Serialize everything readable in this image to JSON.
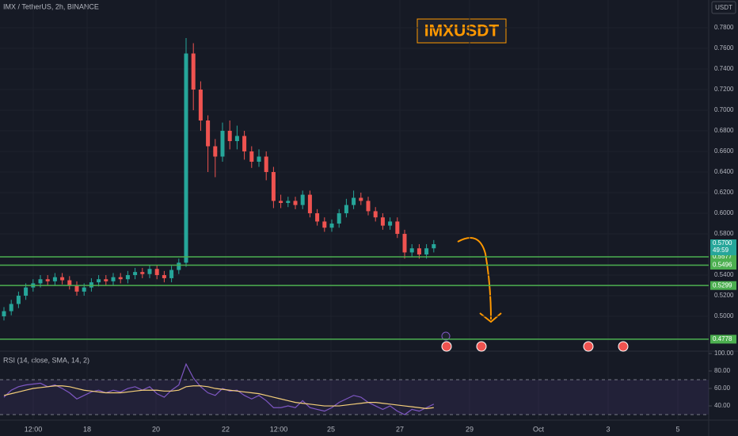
{
  "chart_data": {
    "type": "candlestick",
    "title": "IMX / TetherUS, 2h, BINANCE",
    "badge": "IMXUSDT",
    "currency": "USDT",
    "up_color": "#26a69a",
    "down_color": "#ef5350",
    "grid": true,
    "x_labels": [
      "12:00",
      "18",
      "20",
      "22",
      "12:00",
      "25",
      "27",
      "29",
      "Oct",
      "3",
      "5"
    ],
    "open": [
      0.5,
      0.505,
      0.512,
      0.52,
      0.528,
      0.532,
      0.536,
      0.534,
      0.538,
      0.535,
      0.53,
      0.524,
      0.528,
      0.533,
      0.536,
      0.534,
      0.538,
      0.536,
      0.54,
      0.543,
      0.541,
      0.546,
      0.54,
      0.537,
      0.545,
      0.552,
      0.755,
      0.72,
      0.69,
      0.665,
      0.655,
      0.68,
      0.67,
      0.675,
      0.66,
      0.65,
      0.655,
      0.64,
      0.612,
      0.61,
      0.612,
      0.608,
      0.618,
      0.6,
      0.592,
      0.586,
      0.59,
      0.6,
      0.608,
      0.615,
      0.612,
      0.602,
      0.596,
      0.588,
      0.592,
      0.58,
      0.562,
      0.566,
      0.56,
      0.566
    ],
    "high": [
      0.509,
      0.516,
      0.524,
      0.532,
      0.536,
      0.54,
      0.54,
      0.542,
      0.542,
      0.539,
      0.534,
      0.532,
      0.537,
      0.54,
      0.54,
      0.542,
      0.542,
      0.544,
      0.547,
      0.547,
      0.55,
      0.55,
      0.544,
      0.549,
      0.556,
      0.77,
      0.765,
      0.728,
      0.695,
      0.672,
      0.688,
      0.69,
      0.685,
      0.68,
      0.665,
      0.662,
      0.66,
      0.645,
      0.618,
      0.616,
      0.616,
      0.622,
      0.622,
      0.604,
      0.596,
      0.594,
      0.604,
      0.614,
      0.622,
      0.62,
      0.616,
      0.606,
      0.6,
      0.596,
      0.596,
      0.584,
      0.57,
      0.57,
      0.57,
      0.574
    ],
    "low": [
      0.496,
      0.501,
      0.508,
      0.516,
      0.524,
      0.528,
      0.53,
      0.53,
      0.531,
      0.526,
      0.52,
      0.52,
      0.524,
      0.529,
      0.53,
      0.53,
      0.532,
      0.532,
      0.536,
      0.537,
      0.537,
      0.536,
      0.533,
      0.533,
      0.541,
      0.548,
      0.7,
      0.68,
      0.64,
      0.635,
      0.65,
      0.662,
      0.662,
      0.652,
      0.644,
      0.645,
      0.632,
      0.605,
      0.605,
      0.606,
      0.604,
      0.604,
      0.596,
      0.588,
      0.582,
      0.582,
      0.586,
      0.596,
      0.604,
      0.608,
      0.598,
      0.592,
      0.584,
      0.584,
      0.576,
      0.556,
      0.558,
      0.556,
      0.556,
      0.562
    ],
    "close": [
      0.505,
      0.512,
      0.52,
      0.528,
      0.532,
      0.536,
      0.534,
      0.538,
      0.535,
      0.53,
      0.524,
      0.528,
      0.533,
      0.536,
      0.534,
      0.538,
      0.536,
      0.54,
      0.543,
      0.541,
      0.546,
      0.54,
      0.537,
      0.545,
      0.552,
      0.755,
      0.72,
      0.69,
      0.665,
      0.655,
      0.68,
      0.67,
      0.675,
      0.66,
      0.65,
      0.655,
      0.64,
      0.612,
      0.61,
      0.612,
      0.608,
      0.618,
      0.6,
      0.592,
      0.586,
      0.59,
      0.6,
      0.608,
      0.615,
      0.612,
      0.602,
      0.596,
      0.588,
      0.592,
      0.58,
      0.562,
      0.566,
      0.56,
      0.566,
      0.57
    ],
    "ylim": [
      0.4685,
      0.8069
    ],
    "yticks": [
      {
        "value": 0.78,
        "label": "0.7800"
      },
      {
        "value": 0.76,
        "label": "0.7600"
      },
      {
        "value": 0.74,
        "label": "0.7400"
      },
      {
        "value": 0.72,
        "label": "0.7200"
      },
      {
        "value": 0.7,
        "label": "0.7000"
      },
      {
        "value": 0.68,
        "label": "0.6800"
      },
      {
        "value": 0.66,
        "label": "0.6600"
      },
      {
        "value": 0.64,
        "label": "0.6400"
      },
      {
        "value": 0.62,
        "label": "0.6200"
      },
      {
        "value": 0.6,
        "label": "0.6000"
      },
      {
        "value": 0.58,
        "label": "0.5800"
      },
      {
        "value": 0.54,
        "label": "0.5400"
      },
      {
        "value": 0.52,
        "label": "0.5200"
      },
      {
        "value": 0.5,
        "label": "0.5000"
      }
    ],
    "levels": [
      {
        "value": 0.5577,
        "label": "0.5577"
      },
      {
        "value": 0.5496,
        "label": "0.5496"
      },
      {
        "value": 0.5299,
        "label": "0.5299"
      },
      {
        "value": 0.4778,
        "label": "0.4778"
      }
    ],
    "level_color": "#4caf50",
    "last_price": {
      "value": 0.57,
      "label": "0.5700"
    },
    "countdown": "49:59",
    "rsi": {
      "label": "RSI (14, close, SMA, 14, 2)",
      "color": "#7e57c2",
      "ma_color": "#f5cf7a",
      "band": [
        30,
        70
      ],
      "ylim": [
        25.5,
        100
      ],
      "yticks": [
        {
          "value": 100,
          "label": "100.00"
        },
        {
          "value": 80,
          "label": "80.00"
        },
        {
          "value": 60,
          "label": "60.00"
        },
        {
          "value": 40,
          "label": "40.00"
        }
      ],
      "values": [
        50,
        58,
        62,
        64,
        65,
        66,
        62,
        64,
        60,
        55,
        48,
        52,
        56,
        58,
        55,
        58,
        56,
        60,
        62,
        58,
        62,
        54,
        50,
        58,
        64,
        88,
        72,
        62,
        55,
        52,
        60,
        57,
        58,
        52,
        48,
        52,
        46,
        38,
        38,
        40,
        38,
        46,
        38,
        36,
        34,
        38,
        44,
        48,
        52,
        50,
        44,
        40,
        36,
        40,
        34,
        30,
        36,
        34,
        38,
        42
      ],
      "ma": [
        52,
        54,
        56,
        58,
        60,
        61,
        62,
        63,
        63,
        62,
        60,
        58,
        57,
        56,
        55,
        55,
        55,
        56,
        57,
        58,
        58,
        58,
        57,
        57,
        58,
        62,
        63,
        63,
        62,
        60,
        59,
        58,
        57,
        56,
        55,
        54,
        52,
        50,
        48,
        46,
        44,
        43,
        42,
        41,
        40,
        40,
        40,
        41,
        42,
        43,
        44,
        44,
        43,
        42,
        41,
        40,
        39,
        38,
        37,
        38
      ]
    }
  }
}
